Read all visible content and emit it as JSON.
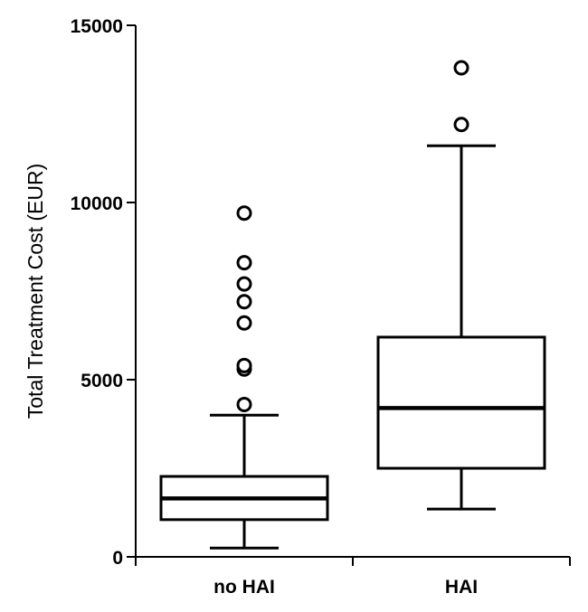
{
  "chart_data": {
    "type": "box",
    "title": "",
    "xlabel": "",
    "ylabel": "Total Treatment Cost (EUR)",
    "ylim": [
      0,
      15000
    ],
    "yticks": [
      0,
      5000,
      10000,
      15000
    ],
    "categories": [
      "no HAI",
      "HAI"
    ],
    "boxes": [
      {
        "category": "no HAI",
        "whisker_low": 250,
        "q1": 1050,
        "median": 1650,
        "q3": 2270,
        "whisker_high": 4000,
        "outliers": [
          4300,
          5300,
          5400,
          6600,
          7200,
          7700,
          8300,
          9700
        ]
      },
      {
        "category": "HAI",
        "whisker_low": 1350,
        "q1": 2500,
        "median": 4200,
        "q3": 6200,
        "whisker_high": 11600,
        "outliers": [
          12200,
          13800
        ]
      }
    ],
    "grid": false,
    "legend": "none",
    "colors": {
      "stroke": "#000000",
      "fill": "#ffffff"
    }
  }
}
